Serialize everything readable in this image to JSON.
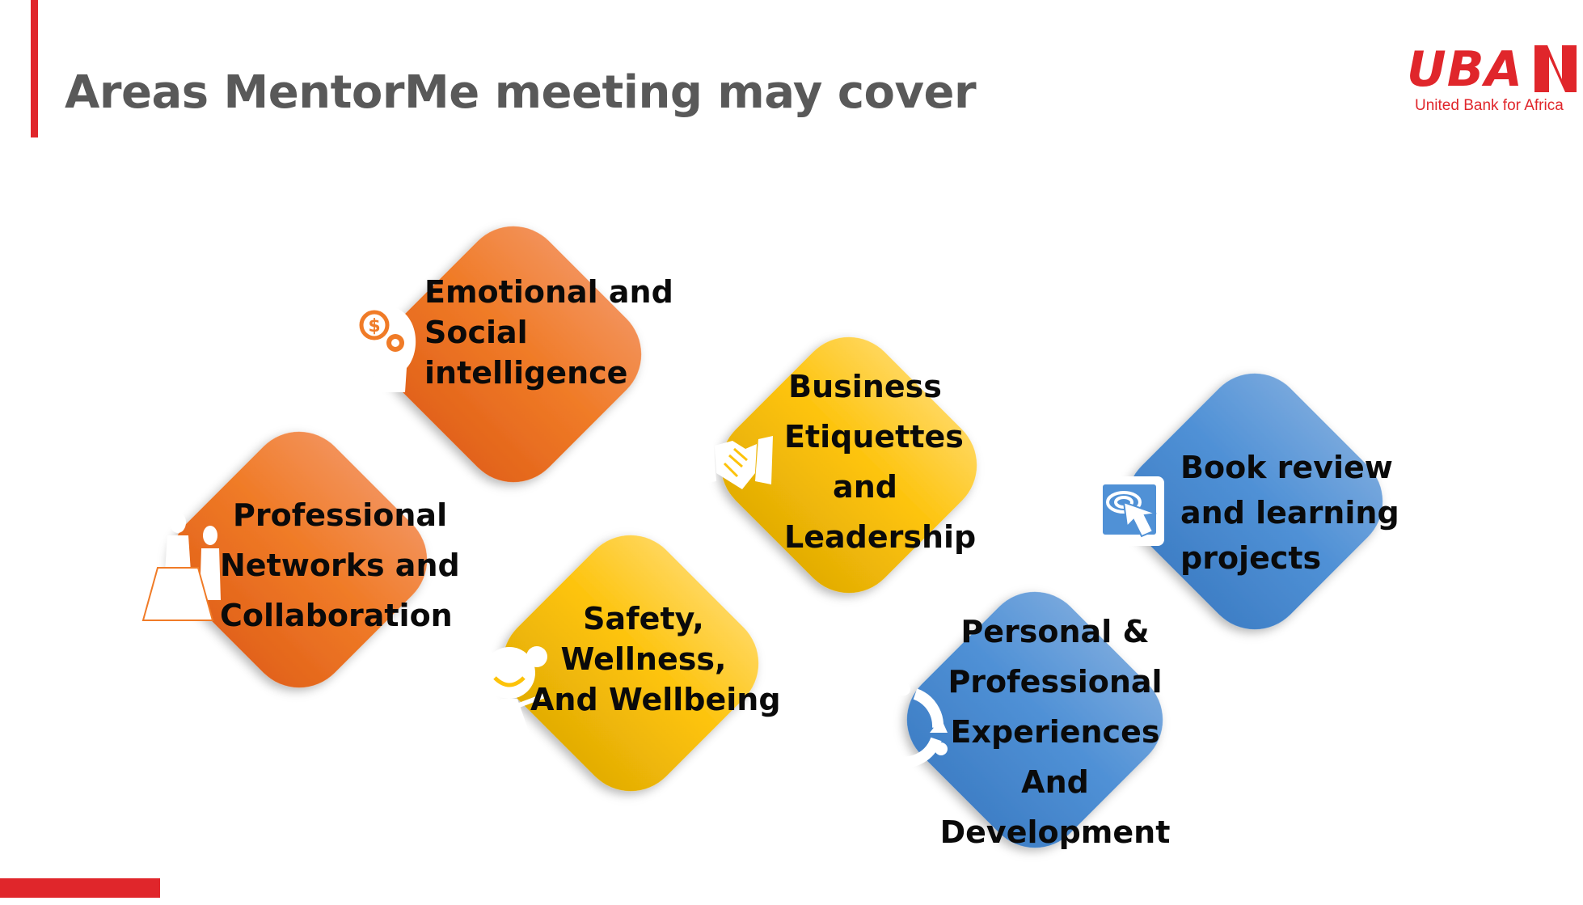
{
  "slide": {
    "title": "Areas MentorMe meeting may cover",
    "accent_color": "#e0262b"
  },
  "logo": {
    "word": "UBA",
    "subtitle": "United Bank for Africa",
    "color": "#e0262b"
  },
  "topics": {
    "emotional": {
      "lines": [
        "Emotional and",
        "Social",
        "intelligence"
      ],
      "icon": "head-gears-icon",
      "color": "orange"
    },
    "networks": {
      "lines": [
        "Professional",
        "Networks and",
        "Collaboration"
      ],
      "icon": "meeting-table-icon",
      "color": "orange"
    },
    "business": {
      "lines": [
        "Business",
        "Etiquettes",
        "and",
        "Leadership"
      ],
      "icon": "handshake-icon",
      "color": "yellow"
    },
    "safety": {
      "lines": [
        "Safety,",
        "Wellness,",
        "And Wellbeing"
      ],
      "icon": "happy-girl-icon",
      "color": "yellow"
    },
    "book": {
      "lines": [
        "Book review",
        "and learning",
        "projects"
      ],
      "icon": "tablet-touch-icon",
      "color": "blue"
    },
    "personal": {
      "lines": [
        "Personal &",
        "Professional",
        "Experiences",
        "And",
        "Development"
      ],
      "icon": "people-cycle-icon",
      "color": "blue"
    }
  }
}
